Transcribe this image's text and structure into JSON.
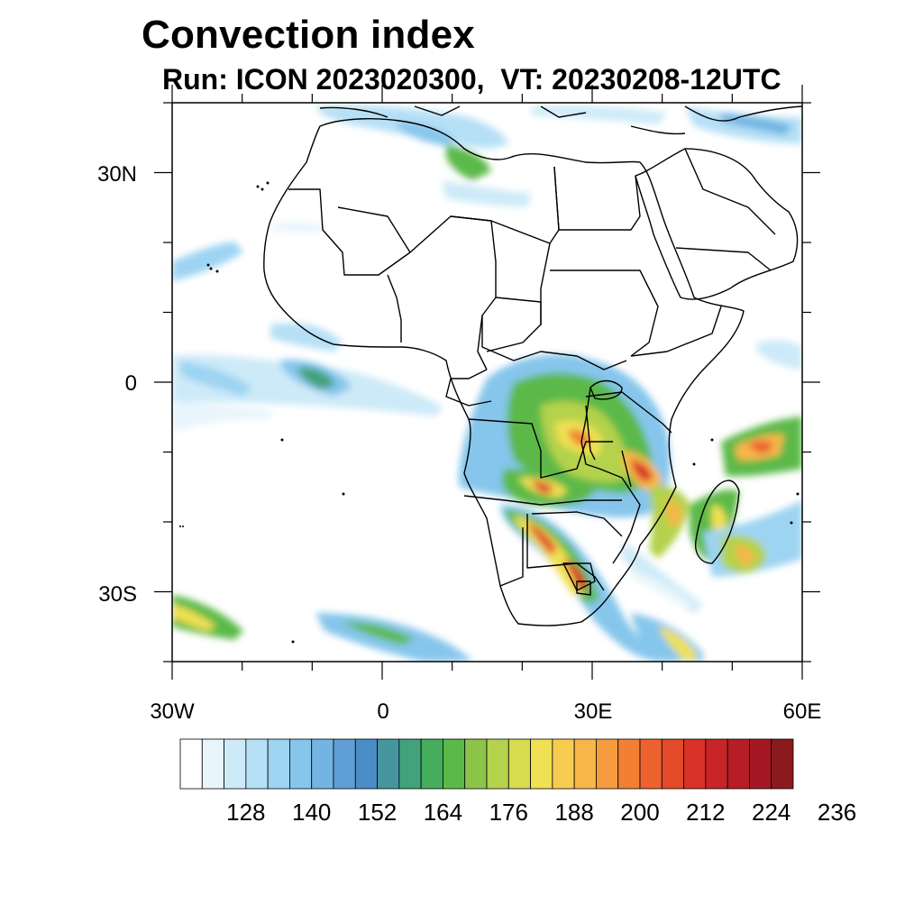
{
  "title": "Convection index",
  "subtitle": "Run: ICON 2023020300,  VT: 20230208-12UTC",
  "map": {
    "region": "Africa and surrounding oceans",
    "extent_lon": [
      -30,
      60
    ],
    "extent_lat": [
      -40,
      40
    ],
    "lat_labels": [
      "30N",
      "0",
      "30S"
    ],
    "lon_labels": [
      "30W",
      "0",
      "30E",
      "60E"
    ]
  },
  "colorbar": {
    "labels": [
      "128",
      "140",
      "152",
      "164",
      "176",
      "188",
      "200",
      "212",
      "224",
      "236"
    ],
    "colors": [
      "#ffffff",
      "#e8f5fc",
      "#cdeaf8",
      "#b6e0f6",
      "#9dd4f2",
      "#86c6ec",
      "#73b5e2",
      "#5f9fd5",
      "#4b8dc6",
      "#4696a0",
      "#42a27b",
      "#46ad5c",
      "#5bb949",
      "#8cc44a",
      "#b4d24c",
      "#d6dc4e",
      "#f0e053",
      "#f7cc50",
      "#f7b648",
      "#f59c3f",
      "#f27f34",
      "#ec622d",
      "#e24a29",
      "#d73128",
      "#c92428",
      "#b71d26",
      "#a51823",
      "#8b1a1c"
    ]
  }
}
